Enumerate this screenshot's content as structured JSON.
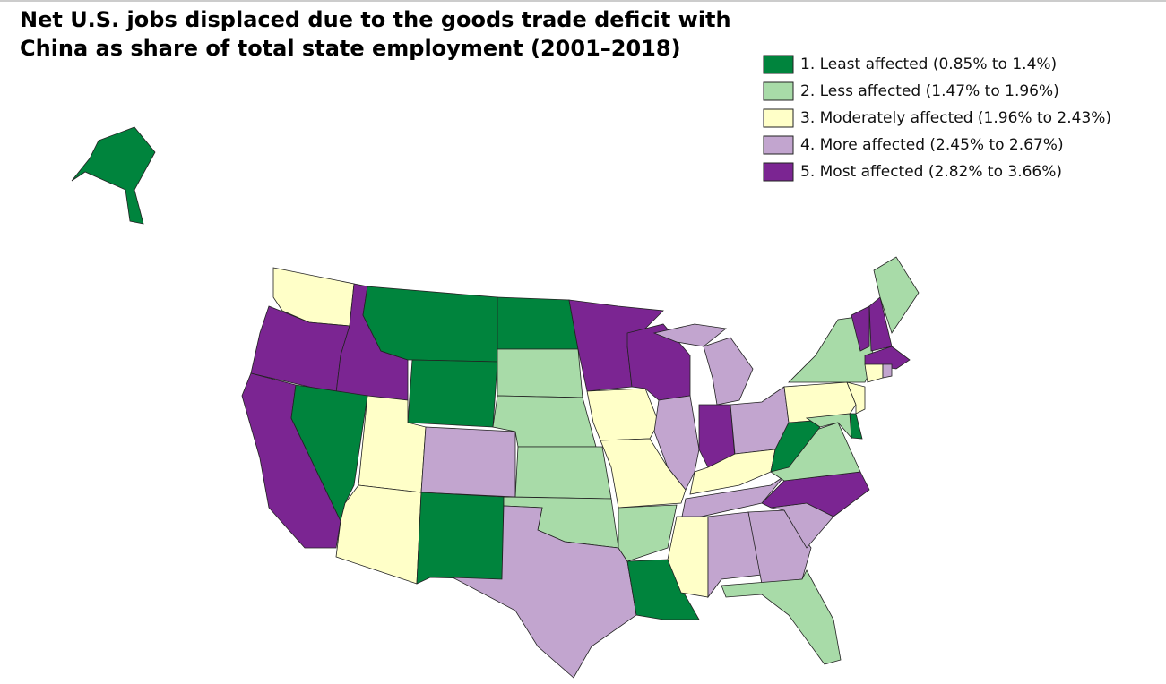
{
  "title": "Net U.S. jobs displaced due to the goods trade deficit with China as share of total state employment (2001–2018)",
  "legend": [
    {
      "label": "1. Least affected (0.85% to 1.4%)",
      "color": "#00843d"
    },
    {
      "label": "2. Less affected (1.47% to 1.96%)",
      "color": "#a8dba8"
    },
    {
      "label": "3. Moderately affected (1.96% to 2.43%)",
      "color": "#ffffc8"
    },
    {
      "label": "4. More affected (2.45% to 2.67%)",
      "color": "#c2a5cf"
    },
    {
      "label": "5. Most affected (2.82% to 3.66%)",
      "color": "#7b2592"
    }
  ],
  "map": {
    "classes": [
      3,
      5,
      5,
      5,
      1,
      1,
      1,
      3,
      3,
      4,
      1,
      1,
      2,
      2,
      2,
      2,
      4,
      5,
      3,
      3,
      2,
      1,
      5,
      4,
      4,
      5,
      4,
      3,
      4,
      3,
      4,
      4,
      2,
      4,
      5,
      2,
      1,
      3,
      2,
      3,
      1,
      2,
      5,
      5,
      2,
      5,
      3,
      4,
      1
    ]
  }
}
